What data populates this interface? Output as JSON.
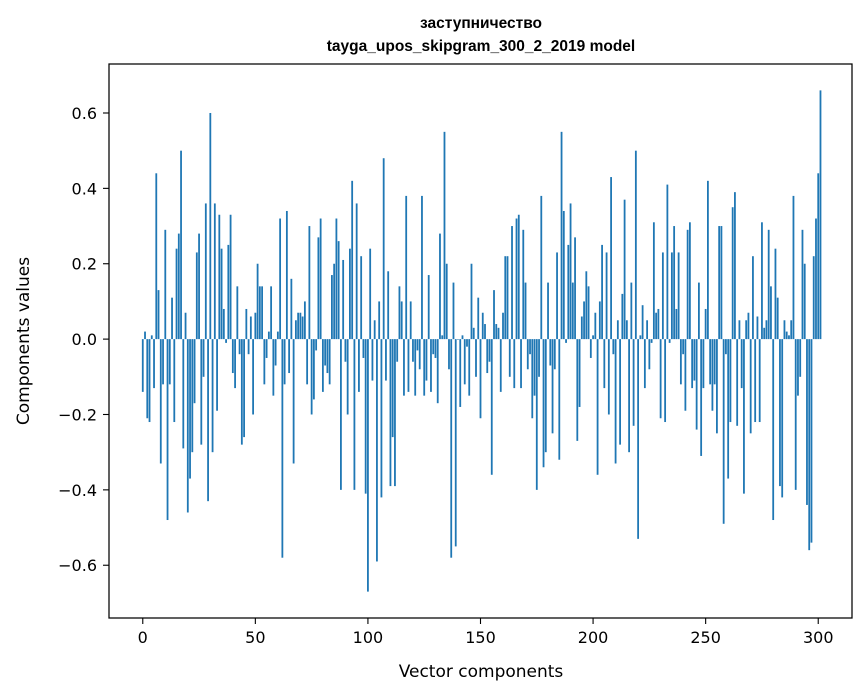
{
  "chart_data": {
    "type": "bar",
    "title": "заступничество",
    "subtitle": "tayga_upos_skipgram_300_2_2019 model",
    "xlabel": "Vector components",
    "ylabel": "Components values",
    "xlim": [
      -15,
      315
    ],
    "ylim": [
      -0.74,
      0.73
    ],
    "xticks": [
      0,
      50,
      100,
      150,
      200,
      250,
      300
    ],
    "yticks": [
      -0.6,
      -0.4,
      -0.2,
      0.0,
      0.2,
      0.4,
      0.6
    ],
    "ytick_labels": [
      "−0.6",
      "−0.4",
      "−0.2",
      "0.0",
      "0.2",
      "0.4",
      "0.6"
    ],
    "color": "#1f77b4",
    "values": [
      -0.14,
      0.02,
      -0.21,
      -0.22,
      0.01,
      -0.13,
      0.44,
      0.13,
      -0.33,
      -0.12,
      0.29,
      -0.48,
      -0.12,
      0.11,
      -0.22,
      0.24,
      0.28,
      0.5,
      -0.29,
      0.07,
      -0.46,
      -0.37,
      -0.3,
      -0.17,
      0.23,
      0.28,
      -0.28,
      -0.1,
      0.36,
      -0.43,
      0.6,
      -0.3,
      0.36,
      -0.19,
      0.33,
      0.24,
      0.08,
      -0.01,
      0.25,
      0.33,
      -0.09,
      -0.13,
      0.14,
      -0.04,
      -0.28,
      -0.26,
      0.08,
      -0.04,
      0.06,
      -0.2,
      0.07,
      0.2,
      0.14,
      0.14,
      -0.12,
      -0.05,
      0.02,
      0.14,
      -0.15,
      -0.07,
      0.02,
      0.32,
      -0.58,
      -0.12,
      0.34,
      -0.09,
      0.16,
      -0.33,
      0.05,
      0.07,
      0.07,
      0.06,
      0.1,
      -0.12,
      0.3,
      -0.2,
      -0.16,
      -0.03,
      0.27,
      0.32,
      -0.14,
      -0.07,
      -0.09,
      -0.12,
      0.17,
      0.2,
      0.32,
      0.26,
      -0.4,
      0.21,
      -0.06,
      -0.2,
      0.24,
      0.42,
      -0.4,
      0.36,
      -0.14,
      0.22,
      -0.05,
      -0.41,
      -0.67,
      0.24,
      -0.11,
      0.05,
      -0.59,
      0.1,
      -0.42,
      0.48,
      -0.11,
      0.18,
      -0.39,
      -0.26,
      -0.39,
      -0.06,
      0.14,
      0.1,
      -0.15,
      0.38,
      -0.14,
      0.1,
      -0.06,
      -0.15,
      -0.03,
      -0.08,
      0.38,
      -0.15,
      -0.11,
      0.17,
      -0.14,
      -0.04,
      -0.05,
      -0.17,
      0.28,
      0.01,
      0.55,
      0.2,
      -0.08,
      -0.58,
      0.15,
      -0.55,
      0.0,
      -0.18,
      0.01,
      -0.12,
      -0.02,
      -0.15,
      0.2,
      0.03,
      -0.1,
      0.11,
      -0.21,
      0.07,
      0.04,
      -0.09,
      -0.06,
      -0.36,
      0.13,
      0.04,
      0.03,
      -0.14,
      0.07,
      0.22,
      0.22,
      -0.1,
      0.3,
      -0.13,
      0.32,
      0.33,
      -0.13,
      0.29,
      0.15,
      -0.08,
      -0.04,
      -0.21,
      -0.15,
      -0.4,
      -0.1,
      0.38,
      -0.34,
      -0.3,
      0.15,
      -0.07,
      -0.25,
      -0.08,
      0.23,
      -0.32,
      0.55,
      0.34,
      -0.01,
      0.25,
      0.36,
      0.15,
      0.27,
      -0.27,
      -0.18,
      0.06,
      0.1,
      0.18,
      0.14,
      -0.05,
      0.01,
      0.07,
      -0.36,
      0.1,
      0.25,
      -0.13,
      0.23,
      -0.2,
      0.43,
      -0.04,
      -0.33,
      0.05,
      -0.28,
      0.12,
      0.37,
      0.05,
      -0.3,
      0.15,
      -0.23,
      0.5,
      -0.53,
      0.01,
      0.09,
      -0.13,
      0.05,
      -0.08,
      -0.01,
      0.31,
      0.07,
      0.08,
      -0.21,
      0.23,
      -0.22,
      0.41,
      -0.01,
      0.23,
      0.3,
      0.08,
      0.23,
      -0.12,
      -0.04,
      -0.19,
      0.29,
      0.31,
      -0.13,
      -0.11,
      -0.24,
      0.15,
      -0.31,
      -0.13,
      0.08,
      0.42,
      -0.12,
      -0.19,
      -0.12,
      -0.25,
      0.3,
      0.3,
      -0.49,
      -0.04,
      -0.37,
      -0.22,
      0.35,
      0.39,
      -0.23,
      0.05,
      -0.13,
      -0.41,
      0.05,
      0.07,
      -0.25,
      0.22,
      -0.22,
      0.06,
      -0.22,
      0.31,
      0.03,
      0.05,
      0.29,
      0.14,
      -0.48,
      0.24,
      0.11,
      -0.39,
      -0.42,
      0.05,
      0.02,
      0.01,
      0.05,
      0.38,
      -0.4,
      -0.15,
      -0.1,
      0.29,
      0.2,
      -0.44,
      -0.56,
      -0.54,
      0.22,
      0.32,
      0.44,
      0.66
    ]
  }
}
